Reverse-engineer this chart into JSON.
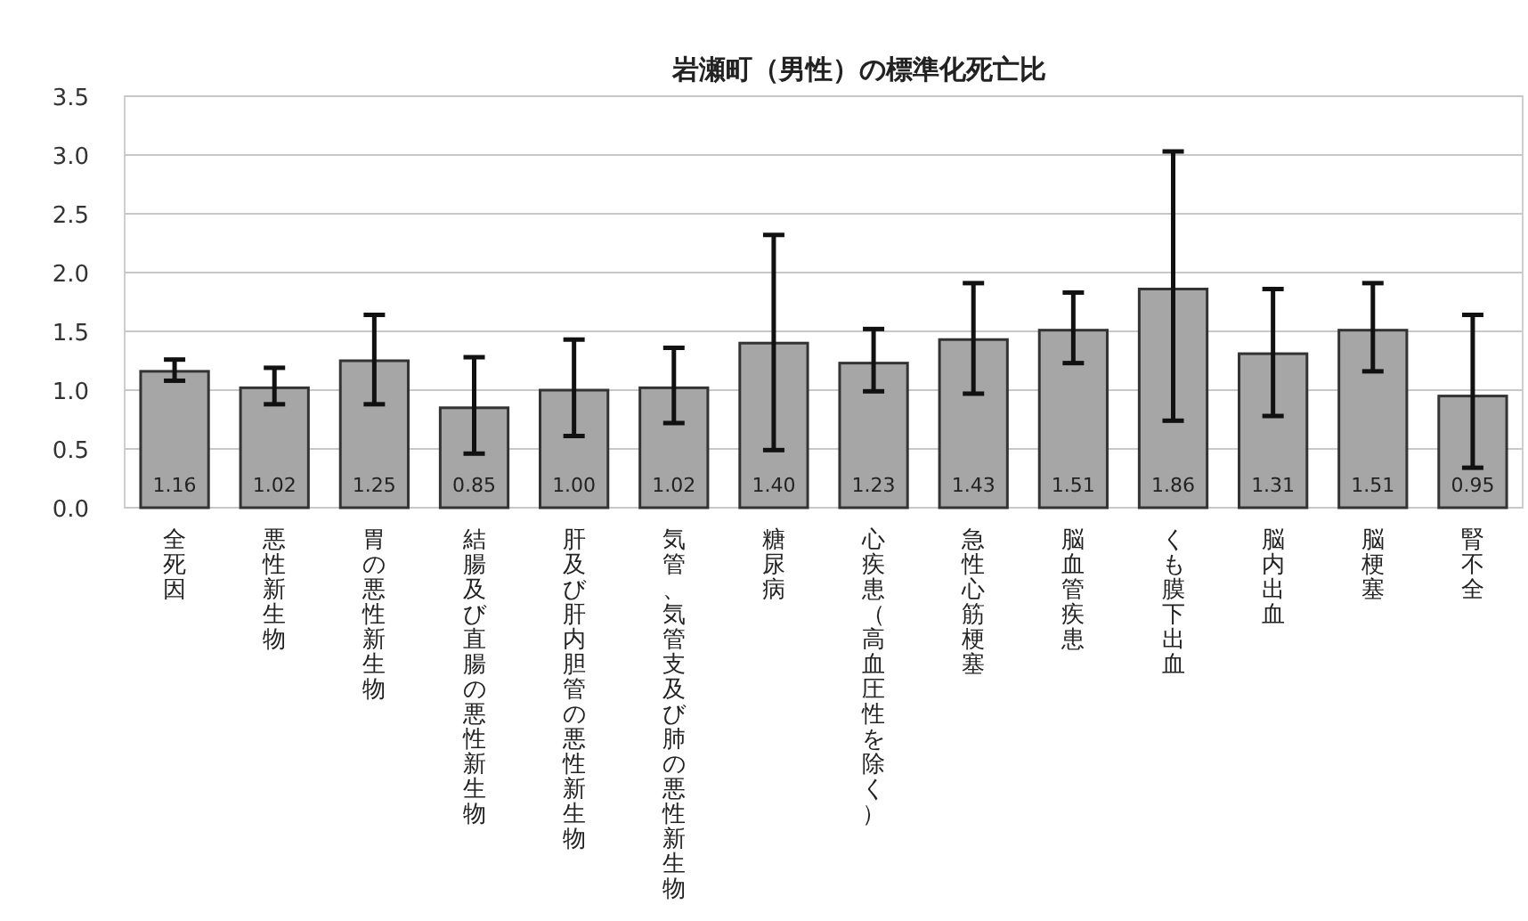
{
  "chart_data": {
    "type": "bar",
    "title": "岩瀬町（男性）の標準化死亡比",
    "categories": [
      "全死因",
      "悪性新生物",
      "胃の悪性新生物",
      "結腸及び直腸の悪性新生物",
      "肝及び肝内胆管の悪性新生物",
      "気管、気管支及び肺の悪性新生物",
      "糖尿病",
      "心疾患（高血圧性を除く）",
      "急性心筋梗塞",
      "脳血管疾患",
      "くも膜下出血",
      "脳内出血",
      "脳梗塞",
      "腎不全"
    ],
    "values": [
      1.16,
      1.02,
      1.25,
      0.85,
      1.0,
      1.02,
      1.4,
      1.23,
      1.43,
      1.51,
      1.86,
      1.31,
      1.51,
      0.95
    ],
    "value_labels": [
      "1.16",
      "1.02",
      "1.25",
      "0.85",
      "1.00",
      "1.02",
      "1.40",
      "1.23",
      "1.43",
      "1.51",
      "1.86",
      "1.31",
      "1.51",
      "0.95"
    ],
    "errors": [
      [
        1.08,
        1.26
      ],
      [
        0.88,
        1.19
      ],
      [
        0.88,
        1.64
      ],
      [
        0.46,
        1.28
      ],
      [
        0.61,
        1.43
      ],
      [
        0.72,
        1.36
      ],
      [
        0.49,
        2.32
      ],
      [
        0.99,
        1.52
      ],
      [
        0.97,
        1.91
      ],
      [
        1.23,
        1.83
      ],
      [
        0.74,
        3.03
      ],
      [
        0.78,
        1.86
      ],
      [
        1.16,
        1.91
      ],
      [
        0.34,
        1.64
      ]
    ],
    "color": "#a6a6a6",
    "ylim": [
      0,
      3.5
    ],
    "yticks": [
      {
        "value": 0,
        "label": "0.0"
      },
      0.5,
      {
        "value": 1,
        "label": "1.0"
      },
      1.5,
      {
        "value": 2,
        "label": "2.0"
      },
      2.5,
      {
        "value": 3,
        "label": "3.0"
      },
      3.5
    ],
    "grid": "y"
  }
}
